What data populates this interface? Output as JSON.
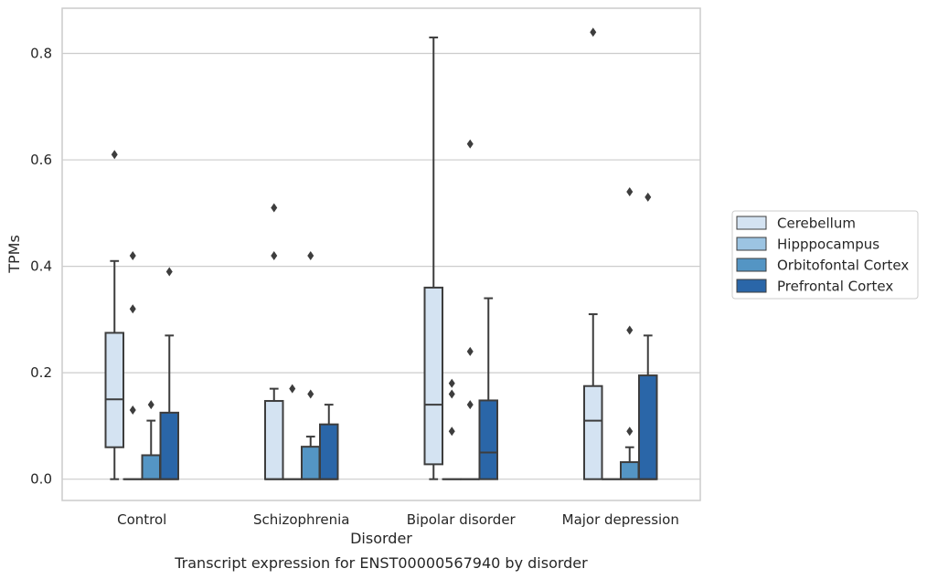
{
  "chart_data": {
    "type": "box",
    "title": "",
    "caption": "Transcript expression for ENST00000567940 by disorder",
    "xlabel": "Disorder",
    "ylabel": "TPMs",
    "ylim": [
      -0.04,
      0.885
    ],
    "yticks": [
      0.0,
      0.2,
      0.4,
      0.6,
      0.8
    ],
    "ytick_labels": [
      "0.0",
      "0.2",
      "0.4",
      "0.6",
      "0.8"
    ],
    "grid": "horizontal",
    "legend_position": "right",
    "categories": [
      "Control",
      "Schizophrenia",
      "Bipolar disorder",
      "Major depression"
    ],
    "series": [
      {
        "name": "Cerebellum",
        "color": "#d4e3f2",
        "boxes": [
          {
            "q1": 0.06,
            "median": 0.15,
            "q3": 0.275,
            "whisker_low": 0.0,
            "whisker_high": 0.41,
            "outliers": [
              0.61
            ]
          },
          {
            "q1": 0.0,
            "median": 0.0,
            "q3": 0.147,
            "whisker_low": 0.0,
            "whisker_high": 0.17,
            "outliers": [
              0.42,
              0.51
            ]
          },
          {
            "q1": 0.028,
            "median": 0.14,
            "q3": 0.36,
            "whisker_low": 0.0,
            "whisker_high": 0.83,
            "outliers": []
          },
          {
            "q1": 0.0,
            "median": 0.11,
            "q3": 0.175,
            "whisker_low": 0.0,
            "whisker_high": 0.31,
            "outliers": [
              0.84
            ]
          }
        ]
      },
      {
        "name": "Hipppocampus",
        "color": "#9cc4e2",
        "boxes": [
          {
            "q1": 0.0,
            "median": 0.0,
            "q3": 0.0,
            "whisker_low": 0.0,
            "whisker_high": 0.0,
            "outliers": [
              0.13,
              0.32,
              0.42
            ]
          },
          {
            "q1": 0.0,
            "median": 0.0,
            "q3": 0.0,
            "whisker_low": 0.0,
            "whisker_high": 0.0,
            "outliers": [
              0.17
            ]
          },
          {
            "q1": 0.0,
            "median": 0.0,
            "q3": 0.0,
            "whisker_low": 0.0,
            "whisker_high": 0.0,
            "outliers": [
              0.09,
              0.16,
              0.18
            ]
          },
          {
            "q1": 0.0,
            "median": 0.0,
            "q3": 0.0,
            "whisker_low": 0.0,
            "whisker_high": 0.0,
            "outliers": []
          }
        ]
      },
      {
        "name": "Orbitofontal Cortex",
        "color": "#5495c4",
        "boxes": [
          {
            "q1": 0.0,
            "median": 0.0,
            "q3": 0.045,
            "whisker_low": 0.0,
            "whisker_high": 0.11,
            "outliers": [
              0.14
            ]
          },
          {
            "q1": 0.0,
            "median": 0.0,
            "q3": 0.061,
            "whisker_low": 0.0,
            "whisker_high": 0.08,
            "outliers": [
              0.16,
              0.42
            ]
          },
          {
            "q1": 0.0,
            "median": 0.0,
            "q3": 0.0,
            "whisker_low": 0.0,
            "whisker_high": 0.0,
            "outliers": [
              0.14,
              0.24,
              0.63
            ]
          },
          {
            "q1": 0.0,
            "median": 0.0,
            "q3": 0.032,
            "whisker_low": 0.0,
            "whisker_high": 0.06,
            "outliers": [
              0.09,
              0.28,
              0.54
            ]
          }
        ]
      },
      {
        "name": "Prefrontal Cortex",
        "color": "#2a66a8",
        "boxes": [
          {
            "q1": 0.0,
            "median": 0.0,
            "q3": 0.125,
            "whisker_low": 0.0,
            "whisker_high": 0.27,
            "outliers": [
              0.39
            ]
          },
          {
            "q1": 0.0,
            "median": 0.0,
            "q3": 0.103,
            "whisker_low": 0.0,
            "whisker_high": 0.14,
            "outliers": []
          },
          {
            "q1": 0.0,
            "median": 0.05,
            "q3": 0.148,
            "whisker_low": 0.0,
            "whisker_high": 0.34,
            "outliers": []
          },
          {
            "q1": 0.0,
            "median": 0.0,
            "q3": 0.195,
            "whisker_low": 0.0,
            "whisker_high": 0.27,
            "outliers": [
              0.53
            ]
          }
        ]
      }
    ]
  }
}
